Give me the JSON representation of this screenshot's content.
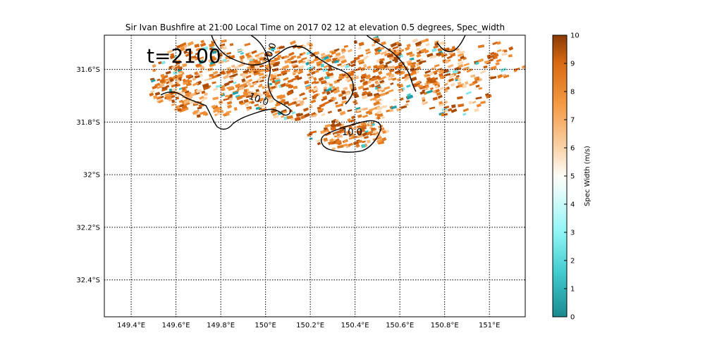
{
  "title": "Sir Ivan Bushfire at 21:00 Local Time on 2017 02 12 at elevation 0.5 degrees, Spec_width",
  "time_label": "t=2100",
  "map": {
    "lon_range": [
      149.28,
      151.16
    ],
    "lat_range": [
      -32.54,
      -31.47
    ],
    "lon_ticks": [
      {
        "value": 149.4,
        "label": "149.4°E"
      },
      {
        "value": 149.6,
        "label": "149.6°E"
      },
      {
        "value": 149.8,
        "label": "149.8°E"
      },
      {
        "value": 150.0,
        "label": "150°E"
      },
      {
        "value": 150.2,
        "label": "150.2°E"
      },
      {
        "value": 150.4,
        "label": "150.4°E"
      },
      {
        "value": 150.6,
        "label": "150.6°E"
      },
      {
        "value": 150.8,
        "label": "150.8°E"
      },
      {
        "value": 151.0,
        "label": "151°E"
      }
    ],
    "lat_ticks": [
      {
        "value": -31.6,
        "label": "31.6°S"
      },
      {
        "value": -31.8,
        "label": "31.8°S"
      },
      {
        "value": -32.0,
        "label": "32°S"
      },
      {
        "value": -32.2,
        "label": "32.2°S"
      },
      {
        "value": -32.4,
        "label": "32.4°S"
      }
    ],
    "grid": true,
    "contour_level_label": "10.0"
  },
  "colorbar": {
    "label": "Spec Width (m/s)",
    "min": 0,
    "max": 10,
    "ticks": [
      "0",
      "1",
      "2",
      "3",
      "4",
      "5",
      "6",
      "7",
      "8",
      "9",
      "10"
    ],
    "stops": [
      {
        "value": 0,
        "color": "#1a8a8f"
      },
      {
        "value": 1.5,
        "color": "#3fc9cc"
      },
      {
        "value": 3,
        "color": "#8ff5f5"
      },
      {
        "value": 4.5,
        "color": "#e8fbfb"
      },
      {
        "value": 5,
        "color": "#fdfdf8"
      },
      {
        "value": 6,
        "color": "#f9d3a9"
      },
      {
        "value": 7.5,
        "color": "#f59b45"
      },
      {
        "value": 9,
        "color": "#d86a14"
      },
      {
        "value": 10,
        "color": "#8b3a05"
      }
    ]
  }
}
